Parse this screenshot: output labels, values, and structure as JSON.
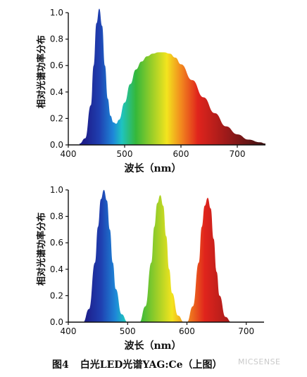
{
  "chart_data": [
    {
      "type": "area",
      "xlabel": "波长（nm）",
      "ylabel": "相对光谱功率分布",
      "xlim": [
        400,
        750
      ],
      "ylim": [
        0.0,
        1.0
      ],
      "x_ticks": [
        400,
        500,
        600,
        700
      ],
      "y_ticks": [
        0.0,
        0.2,
        0.4,
        0.6,
        0.8,
        1.0
      ],
      "fill": "visible-spectrum gradient",
      "series": [
        {
          "x": [
            420,
            430,
            440,
            445,
            450,
            455,
            460,
            465,
            470,
            475,
            480,
            485,
            490,
            500,
            510,
            520,
            530,
            540,
            550,
            560,
            570,
            580,
            590,
            600,
            620,
            640,
            660,
            680,
            700,
            720,
            740,
            750
          ],
          "values": [
            0.01,
            0.05,
            0.3,
            0.6,
            0.92,
            1.03,
            0.9,
            0.6,
            0.35,
            0.22,
            0.17,
            0.16,
            0.19,
            0.32,
            0.46,
            0.57,
            0.63,
            0.67,
            0.69,
            0.7,
            0.7,
            0.69,
            0.66,
            0.61,
            0.49,
            0.36,
            0.24,
            0.14,
            0.08,
            0.04,
            0.02,
            0.01
          ]
        }
      ]
    },
    {
      "type": "area",
      "xlabel": "波长（nm）",
      "ylabel": "相对光谱功率分布",
      "xlim": [
        400,
        730
      ],
      "ylim": [
        0.0,
        1.0
      ],
      "x_ticks": [
        400,
        500,
        600,
        700
      ],
      "y_ticks": [
        0.0,
        0.2,
        0.4,
        0.6,
        0.8,
        1.0
      ],
      "fill": "visible-spectrum gradient",
      "series": [
        {
          "x": [
            425,
            435,
            445,
            450,
            455,
            460,
            465,
            470,
            475,
            480,
            490,
            500
          ],
          "values": [
            0.0,
            0.1,
            0.45,
            0.72,
            0.93,
            1.0,
            0.92,
            0.7,
            0.45,
            0.25,
            0.06,
            0.0
          ]
        },
        {
          "x": [
            520,
            530,
            540,
            545,
            550,
            555,
            560,
            565,
            570,
            575,
            585,
            595
          ],
          "values": [
            0.0,
            0.12,
            0.45,
            0.72,
            0.9,
            0.96,
            0.88,
            0.65,
            0.4,
            0.22,
            0.05,
            0.0
          ]
        },
        {
          "x": [
            600,
            610,
            620,
            625,
            630,
            635,
            640,
            645,
            650,
            655,
            665,
            675
          ],
          "values": [
            0.0,
            0.12,
            0.45,
            0.72,
            0.88,
            0.94,
            0.86,
            0.63,
            0.38,
            0.2,
            0.04,
            0.0
          ]
        }
      ]
    }
  ],
  "caption": {
    "figure": "图4",
    "text": "白光LED光谱YAG:Ce（上图）"
  },
  "watermark": "MICSENSE",
  "colors": {
    "spectrum": [
      "#1d1f8c",
      "#1f3fb0",
      "#1e88d8",
      "#1fc3c0",
      "#35b83a",
      "#8ecb2a",
      "#f3e41e",
      "#f28a1e",
      "#e0241c",
      "#9e1a1a",
      "#3a1212"
    ]
  }
}
